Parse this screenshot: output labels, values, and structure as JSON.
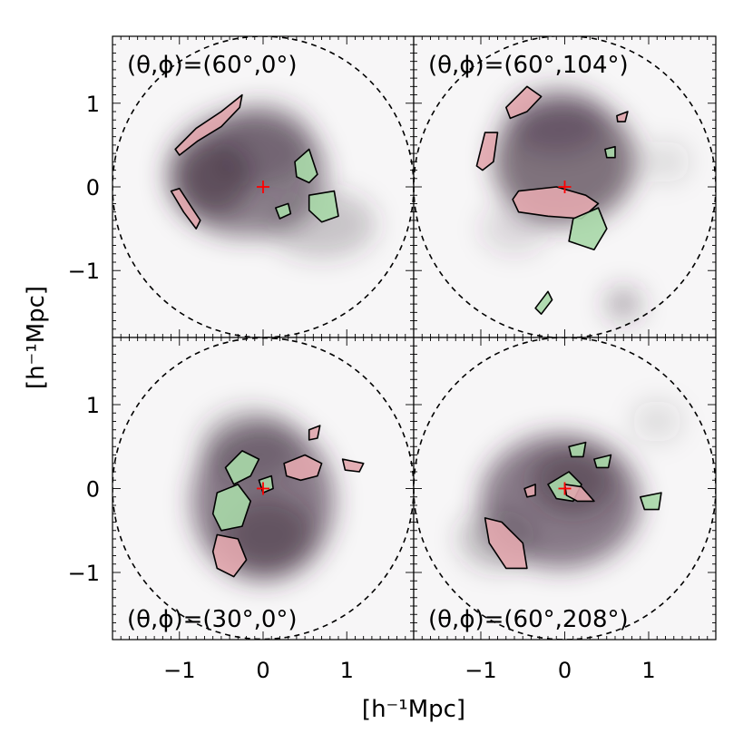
{
  "chart_data": {
    "type": "heatmap",
    "xlabel": "[h⁻¹Mpc]",
    "ylabel": "[h⁻¹Mpc]",
    "xlim": [
      -1.8,
      1.8
    ],
    "ylim": [
      -1.8,
      1.8
    ],
    "ticks": [
      -1,
      0,
      1
    ],
    "tick_labels": [
      "−1",
      "0",
      "1"
    ],
    "circle_radius": 1.8,
    "colors": {
      "density": "#3d2a3c",
      "positive_contour": "#e2a7ae",
      "negative_contour": "#a9d8a8",
      "center_marker": "#ff0000"
    },
    "panels": [
      {
        "label": "(θ,ϕ)=(60°,0°)",
        "center": [
          0,
          0
        ],
        "density_blobs": [
          {
            "x": -0.2,
            "y": 0.15,
            "rx": 0.95,
            "ry": 0.75,
            "w": 0.55
          },
          {
            "x": -0.6,
            "y": 0.1,
            "rx": 0.45,
            "ry": 0.45,
            "w": 0.6
          },
          {
            "x": 0.7,
            "y": -0.45,
            "rx": 0.65,
            "ry": 0.4,
            "w": 0.25
          },
          {
            "x": 0.0,
            "y": 0.5,
            "rx": 0.6,
            "ry": 0.5,
            "w": 0.35
          }
        ],
        "contours": [
          {
            "sign": "positive",
            "points": [
              [
                -1.05,
                0.45
              ],
              [
                -0.8,
                0.7
              ],
              [
                -0.5,
                0.9
              ],
              [
                -0.25,
                1.1
              ],
              [
                -0.28,
                0.95
              ],
              [
                -0.5,
                0.72
              ],
              [
                -0.78,
                0.55
              ],
              [
                -1.0,
                0.38
              ]
            ]
          },
          {
            "sign": "positive",
            "points": [
              [
                -1.1,
                -0.05
              ],
              [
                -0.95,
                -0.3
              ],
              [
                -0.8,
                -0.5
              ],
              [
                -0.75,
                -0.4
              ],
              [
                -0.85,
                -0.25
              ],
              [
                -1.0,
                -0.02
              ]
            ]
          },
          {
            "sign": "negative",
            "points": [
              [
                0.38,
                0.3
              ],
              [
                0.55,
                0.45
              ],
              [
                0.65,
                0.15
              ],
              [
                0.55,
                0.05
              ],
              [
                0.4,
                0.12
              ]
            ]
          },
          {
            "sign": "negative",
            "points": [
              [
                0.55,
                -0.1
              ],
              [
                0.85,
                -0.05
              ],
              [
                0.9,
                -0.35
              ],
              [
                0.7,
                -0.42
              ],
              [
                0.55,
                -0.28
              ]
            ]
          },
          {
            "sign": "negative",
            "points": [
              [
                0.15,
                -0.25
              ],
              [
                0.3,
                -0.2
              ],
              [
                0.33,
                -0.32
              ],
              [
                0.2,
                -0.38
              ]
            ]
          }
        ]
      },
      {
        "label": "(θ,ϕ)=(60°,104°)",
        "center": [
          0,
          0
        ],
        "density_blobs": [
          {
            "x": 0.0,
            "y": 0.3,
            "rx": 0.85,
            "ry": 0.75,
            "w": 0.65
          },
          {
            "x": -0.1,
            "y": 0.8,
            "rx": 0.6,
            "ry": 0.4,
            "w": 0.35
          },
          {
            "x": 0.7,
            "y": -1.4,
            "rx": 0.22,
            "ry": 0.2,
            "w": 0.35
          },
          {
            "x": -0.6,
            "y": -0.5,
            "rx": 0.4,
            "ry": 0.3,
            "w": 0.15
          },
          {
            "x": 1.2,
            "y": 0.3,
            "rx": 0.3,
            "ry": 0.25,
            "w": 0.12
          }
        ],
        "contours": [
          {
            "sign": "positive",
            "points": [
              [
                -0.7,
                0.95
              ],
              [
                -0.45,
                1.2
              ],
              [
                -0.28,
                1.08
              ],
              [
                -0.45,
                0.9
              ],
              [
                -0.65,
                0.82
              ]
            ]
          },
          {
            "sign": "positive",
            "points": [
              [
                -1.05,
                0.25
              ],
              [
                -0.95,
                0.65
              ],
              [
                -0.8,
                0.65
              ],
              [
                -0.85,
                0.3
              ],
              [
                -0.98,
                0.2
              ]
            ]
          },
          {
            "sign": "positive",
            "points": [
              [
                -0.55,
                -0.05
              ],
              [
                -0.1,
                0.0
              ],
              [
                0.25,
                -0.1
              ],
              [
                0.4,
                -0.2
              ],
              [
                0.2,
                -0.38
              ],
              [
                -0.2,
                -0.35
              ],
              [
                -0.55,
                -0.3
              ],
              [
                -0.62,
                -0.15
              ]
            ]
          },
          {
            "sign": "negative",
            "points": [
              [
                0.1,
                -0.38
              ],
              [
                0.4,
                -0.25
              ],
              [
                0.5,
                -0.5
              ],
              [
                0.35,
                -0.75
              ],
              [
                0.05,
                -0.65
              ]
            ]
          },
          {
            "sign": "negative",
            "points": [
              [
                -0.35,
                -1.45
              ],
              [
                -0.2,
                -1.25
              ],
              [
                -0.15,
                -1.35
              ],
              [
                -0.28,
                -1.52
              ]
            ]
          },
          {
            "sign": "positive",
            "points": [
              [
                0.62,
                0.85
              ],
              [
                0.75,
                0.9
              ],
              [
                0.72,
                0.78
              ],
              [
                0.63,
                0.78
              ]
            ]
          },
          {
            "sign": "negative",
            "points": [
              [
                0.48,
                0.45
              ],
              [
                0.6,
                0.48
              ],
              [
                0.6,
                0.35
              ],
              [
                0.5,
                0.35
              ]
            ]
          }
        ]
      },
      {
        "label": "(θ,ϕ)=(30°,0°)",
        "center": [
          0,
          0
        ],
        "density_blobs": [
          {
            "x": 0.0,
            "y": -0.15,
            "rx": 0.85,
            "ry": 0.95,
            "w": 0.6
          },
          {
            "x": 0.05,
            "y": -0.55,
            "rx": 0.55,
            "ry": 0.45,
            "w": 0.5
          },
          {
            "x": -0.15,
            "y": 0.5,
            "rx": 0.6,
            "ry": 0.45,
            "w": 0.3
          }
        ],
        "contours": [
          {
            "sign": "negative",
            "points": [
              [
                -0.45,
                0.25
              ],
              [
                -0.25,
                0.45
              ],
              [
                -0.05,
                0.35
              ],
              [
                -0.15,
                0.15
              ],
              [
                -0.35,
                0.05
              ]
            ]
          },
          {
            "sign": "negative",
            "points": [
              [
                -0.55,
                -0.05
              ],
              [
                -0.3,
                0.05
              ],
              [
                -0.15,
                -0.15
              ],
              [
                -0.25,
                -0.45
              ],
              [
                -0.5,
                -0.5
              ],
              [
                -0.6,
                -0.3
              ]
            ]
          },
          {
            "sign": "negative",
            "points": [
              [
                -0.05,
                0.1
              ],
              [
                0.1,
                0.15
              ],
              [
                0.12,
                0.0
              ],
              [
                0.0,
                -0.05
              ]
            ]
          },
          {
            "sign": "positive",
            "points": [
              [
                -0.55,
                -0.55
              ],
              [
                -0.3,
                -0.6
              ],
              [
                -0.2,
                -0.85
              ],
              [
                -0.35,
                -1.05
              ],
              [
                -0.55,
                -0.95
              ],
              [
                -0.6,
                -0.75
              ]
            ]
          },
          {
            "sign": "positive",
            "points": [
              [
                0.25,
                0.3
              ],
              [
                0.5,
                0.4
              ],
              [
                0.7,
                0.3
              ],
              [
                0.65,
                0.15
              ],
              [
                0.45,
                0.1
              ],
              [
                0.28,
                0.15
              ]
            ]
          },
          {
            "sign": "positive",
            "points": [
              [
                0.95,
                0.35
              ],
              [
                1.2,
                0.3
              ],
              [
                1.15,
                0.2
              ],
              [
                0.98,
                0.22
              ]
            ]
          },
          {
            "sign": "positive",
            "points": [
              [
                0.55,
                0.7
              ],
              [
                0.68,
                0.75
              ],
              [
                0.65,
                0.6
              ],
              [
                0.55,
                0.58
              ]
            ]
          }
        ]
      },
      {
        "label": "(θ,ϕ)=(60°,208°)",
        "center": [
          0,
          0
        ],
        "density_blobs": [
          {
            "x": -0.05,
            "y": -0.15,
            "rx": 0.95,
            "ry": 0.8,
            "w": 0.6
          },
          {
            "x": 0.1,
            "y": 0.1,
            "rx": 0.5,
            "ry": 0.4,
            "w": 0.5
          },
          {
            "x": -0.8,
            "y": -0.6,
            "rx": 0.45,
            "ry": 0.35,
            "w": 0.3
          },
          {
            "x": 1.1,
            "y": 0.8,
            "rx": 0.3,
            "ry": 0.25,
            "w": 0.12
          }
        ],
        "contours": [
          {
            "sign": "positive",
            "points": [
              [
                -0.95,
                -0.35
              ],
              [
                -0.75,
                -0.4
              ],
              [
                -0.5,
                -0.65
              ],
              [
                -0.45,
                -0.95
              ],
              [
                -0.7,
                -0.95
              ],
              [
                -0.9,
                -0.65
              ]
            ]
          },
          {
            "sign": "negative",
            "points": [
              [
                -0.2,
                0.05
              ],
              [
                0.05,
                0.2
              ],
              [
                0.2,
                0.05
              ],
              [
                0.1,
                -0.15
              ],
              [
                -0.1,
                -0.12
              ]
            ]
          },
          {
            "sign": "positive",
            "points": [
              [
                0.0,
                0.05
              ],
              [
                0.2,
                0.02
              ],
              [
                0.35,
                -0.15
              ],
              [
                0.15,
                -0.15
              ],
              [
                0.02,
                -0.08
              ]
            ]
          },
          {
            "sign": "negative",
            "points": [
              [
                0.05,
                0.5
              ],
              [
                0.25,
                0.55
              ],
              [
                0.22,
                0.38
              ],
              [
                0.08,
                0.38
              ]
            ]
          },
          {
            "sign": "negative",
            "points": [
              [
                0.35,
                0.35
              ],
              [
                0.55,
                0.4
              ],
              [
                0.52,
                0.25
              ],
              [
                0.38,
                0.25
              ]
            ]
          },
          {
            "sign": "negative",
            "points": [
              [
                0.9,
                -0.1
              ],
              [
                1.15,
                -0.05
              ],
              [
                1.12,
                -0.25
              ],
              [
                0.95,
                -0.25
              ]
            ]
          },
          {
            "sign": "positive",
            "points": [
              [
                -0.48,
                0.0
              ],
              [
                -0.35,
                0.05
              ],
              [
                -0.35,
                -0.08
              ],
              [
                -0.45,
                -0.1
              ]
            ]
          }
        ]
      }
    ]
  }
}
